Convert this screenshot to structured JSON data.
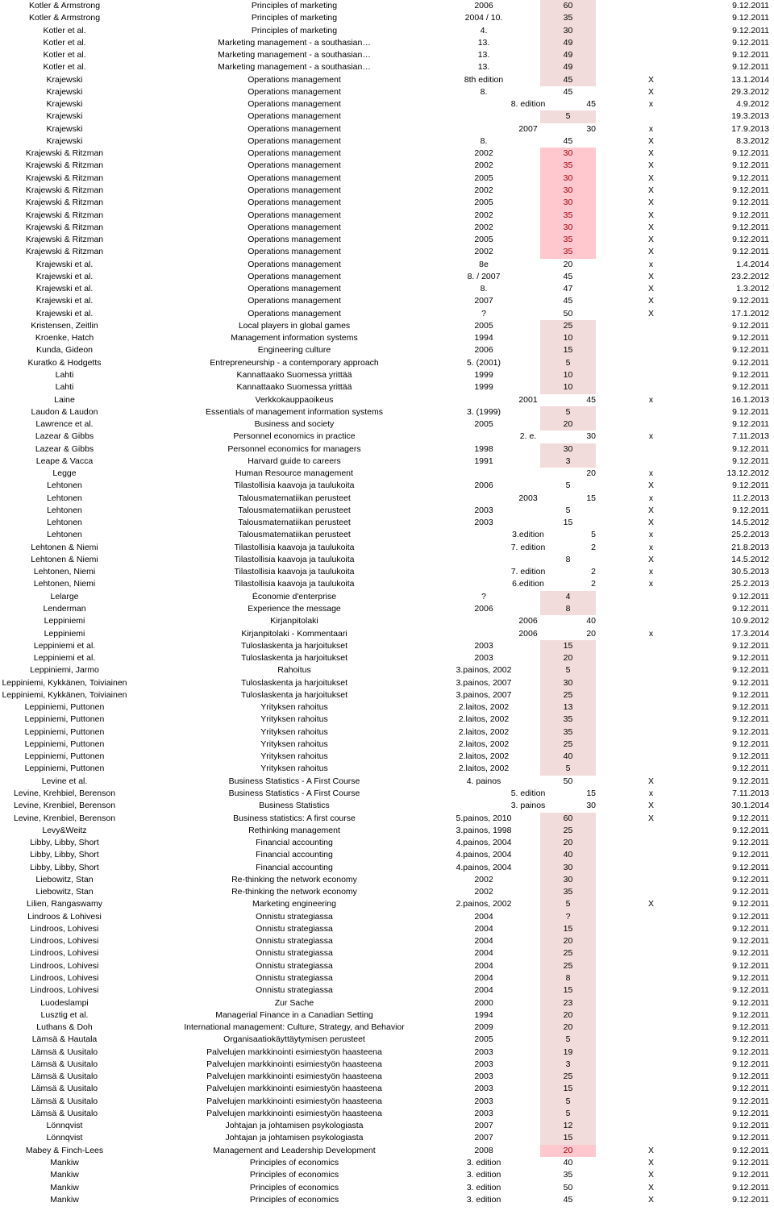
{
  "rows": [
    [
      "Kotler & Armstrong",
      "Principles of marketing",
      "2006",
      "60",
      "",
      "9.12.2011"
    ],
    [
      "Kotler & Armstrong",
      "Principles of marketing",
      "2004 / 10.",
      "35",
      "",
      "9.12.2011"
    ],
    [
      "Kotler et al.",
      "Principles of marketing",
      "4.",
      "30",
      "",
      "9.12.2011"
    ],
    [
      "Kotler et al.",
      "Marketing management - a southasian…",
      "13.",
      "49",
      "",
      "9.12.2011"
    ],
    [
      "Kotler et al.",
      "Marketing management - a southasian…",
      "13.",
      "49",
      "",
      "9.12.2011"
    ],
    [
      "Kotler et al.",
      "Marketing management - a southasian…",
      "13.",
      "49",
      "",
      "9.12.2011"
    ],
    [
      "Krajewski",
      "Operations management",
      "8th edition",
      "45",
      "X",
      "13.1.2014"
    ],
    [
      "Krajewski",
      "Operations management",
      "8.",
      "45",
      "X",
      "29.3.2012"
    ],
    [
      "Krajewski",
      "Operations management",
      "8. edition",
      "45",
      "x",
      "4.9.2012"
    ],
    [
      "Krajewski",
      "Operations management",
      "",
      "5",
      "",
      "19.3.2013"
    ],
    [
      "Krajewski",
      "Operations management",
      "2007",
      "30",
      "x",
      "17.9.2013"
    ],
    [
      "Krajewski",
      "Operations management",
      "8.",
      "45",
      "X",
      "8.3.2012"
    ],
    [
      "Krajewski & Ritzman",
      "Operations management",
      "2002",
      "30",
      "X",
      "9.12.2011"
    ],
    [
      "Krajewski & Ritzman",
      "Operations management",
      "2002",
      "35",
      "X",
      "9.12.2011"
    ],
    [
      "Krajewski & Ritzman",
      "Operations management",
      "2005",
      "30",
      "X",
      "9.12.2011"
    ],
    [
      "Krajewski & Ritzman",
      "Operations management",
      "2002",
      "30",
      "X",
      "9.12.2011"
    ],
    [
      "Krajewski & Ritzman",
      "Operations management",
      "2005",
      "30",
      "X",
      "9.12.2011"
    ],
    [
      "Krajewski & Ritzman",
      "Operations management",
      "2002",
      "35",
      "X",
      "9.12.2011"
    ],
    [
      "Krajewski & Ritzman",
      "Operations management",
      "2002",
      "30",
      "X",
      "9.12.2011"
    ],
    [
      "Krajewski & Ritzman",
      "Operations management",
      "2005",
      "35",
      "X",
      "9.12.2011"
    ],
    [
      "Krajewski & Ritzman",
      "Operations management",
      "2002",
      "35",
      "X",
      "9.12.2011"
    ],
    [
      "Krajewski et al.",
      "Operations management",
      "8e",
      "20",
      "x",
      "1.4.2014"
    ],
    [
      "Krajewski et al.",
      "Operations management",
      "8. / 2007",
      "45",
      "X",
      "23.2.2012"
    ],
    [
      "Krajewski et al.",
      "Operations management",
      "8.",
      "47",
      "X",
      "1.3.2012"
    ],
    [
      "Krajewski et al.",
      "Operations management",
      "2007",
      "45",
      "X",
      "9.12.2011"
    ],
    [
      "Krajewski et al.",
      "Operations management",
      "?",
      "50",
      "X",
      "17.1.2012"
    ],
    [
      "Kristensen, Zeitlin",
      "Local players in global games",
      "2005",
      "25",
      "",
      "9.12.2011"
    ],
    [
      "Kroenke, Hatch",
      "Management information systems",
      "1994",
      "10",
      "",
      "9.12.2011"
    ],
    [
      "Kunda, Gideon",
      "Engineering culture",
      "2006",
      "15",
      "",
      "9.12.2011"
    ],
    [
      "Kuratko & Hodgetts",
      "Entrepreneurship - a contemporary approach",
      "5. (2001)",
      "5",
      "",
      "9.12.2011"
    ],
    [
      "Lahti",
      "Kannattaako Suomessa yrittää",
      "1999",
      "10",
      "",
      "9.12.2011"
    ],
    [
      "Lahti",
      "Kannattaako Suomessa yrittää",
      "1999",
      "10",
      "",
      "9.12.2011"
    ],
    [
      "Laine",
      "Verkkokauppaoikeus",
      "2001",
      "45",
      "x",
      "16.1.2013"
    ],
    [
      "Laudon & Laudon",
      "Essentials of management information systems",
      "3. (1999)",
      "5",
      "",
      "9.12.2011"
    ],
    [
      "Lawrence et al.",
      "Business and society",
      "2005",
      "20",
      "",
      "9.12.2011"
    ],
    [
      "Lazear & Gibbs",
      "Personnel economics in practice",
      "2. e.",
      "30",
      "x",
      "7.11.2013"
    ],
    [
      "Lazear & Gibbs",
      "Personnel economics for managers",
      "1998",
      "30",
      "",
      "9.12.2011"
    ],
    [
      "Leape & Vacca",
      "Harvard guide to careers",
      "1991",
      "3",
      "",
      "9.12.2011"
    ],
    [
      "Legge",
      "Human Resource management",
      "",
      "20",
      "x",
      "13.12.2012"
    ],
    [
      "Lehtonen",
      "Tilastollisia kaavoja ja taulukoita",
      "2006",
      "5",
      "X",
      "9.12.2011"
    ],
    [
      "Lehtonen",
      "Talousmatematiikan perusteet",
      "2003",
      "15",
      "x",
      "11.2.2013"
    ],
    [
      "Lehtonen",
      "Talousmatematiikan perusteet",
      "2003",
      "5",
      "X",
      "9.12.2011"
    ],
    [
      "Lehtonen",
      "Talousmatematiikan perusteet",
      "2003",
      "15",
      "X",
      "14.5.2012"
    ],
    [
      "Lehtonen",
      "Talousmatematiikan perusteet",
      "3.edition",
      "5",
      "x",
      "25.2.2013"
    ],
    [
      "Lehtonen & Niemi",
      "Tilastollisia kaavoja ja taulukoita",
      "7. edition",
      "2",
      "x",
      "21.8.2013"
    ],
    [
      "Lehtonen & Niemi",
      "Tilastollisia kaavoja ja taulukoita",
      "",
      "8",
      "X",
      "14.5.2012"
    ],
    [
      "Lehtonen, Niemi",
      "Tilastollisia kaavoja ja taulukoita",
      "7. edition",
      "2",
      "x",
      "30.5.2013"
    ],
    [
      "Lehtonen, Niemi",
      "Tilastollisia kaavoja ja taulukoita",
      "6.edition",
      "2",
      "x",
      "25.2.2013"
    ],
    [
      "Lelarge",
      "Économie d'enterprise",
      "?",
      "4",
      "",
      "9.12.2011"
    ],
    [
      "Lenderman",
      "Experience the message",
      "2006",
      "8",
      "",
      "9.12.2011"
    ],
    [
      "Leppiniemi",
      "Kirjanpitolaki",
      "2006",
      "40",
      "",
      "10.9.2012"
    ],
    [
      "Leppiniemi",
      "Kirjanpitolaki - Kommentaari",
      "2006",
      "20",
      "x",
      "17.3.2014"
    ],
    [
      "Leppiniemi et al.",
      "Tuloslaskenta ja harjoitukset",
      "2003",
      "15",
      "",
      "9.12.2011"
    ],
    [
      "Leppiniemi et al.",
      "Tuloslaskenta ja harjoitukset",
      "2003",
      "20",
      "",
      "9.12.2011"
    ],
    [
      "Leppiniemi, Jarmo",
      "Rahoitus",
      "3.painos, 2002",
      "5",
      "",
      "9.12.2011"
    ],
    [
      "Leppiniemi, Kykkänen, Toiviainen",
      "Tuloslaskenta ja harjoitukset",
      "3.painos, 2007",
      "30",
      "",
      "9.12.2011"
    ],
    [
      "Leppiniemi, Kykkänen, Toiviainen",
      "Tuloslaskenta ja harjoitukset",
      "3.painos, 2007",
      "25",
      "",
      "9.12.2011"
    ],
    [
      "Leppiniemi, Puttonen",
      "Yrityksen rahoitus",
      "2.laitos, 2002",
      "13",
      "",
      "9.12.2011"
    ],
    [
      "Leppiniemi, Puttonen",
      "Yrityksen rahoitus",
      "2.laitos, 2002",
      "35",
      "",
      "9.12.2011"
    ],
    [
      "Leppiniemi, Puttonen",
      "Yrityksen rahoitus",
      "2.laitos, 2002",
      "35",
      "",
      "9.12.2011"
    ],
    [
      "Leppiniemi, Puttonen",
      "Yrityksen rahoitus",
      "2.laitos, 2002",
      "25",
      "",
      "9.12.2011"
    ],
    [
      "Leppiniemi, Puttonen",
      "Yrityksen rahoitus",
      "2.laitos, 2002",
      "40",
      "",
      "9.12.2011"
    ],
    [
      "Leppiniemi, Puttonen",
      "Yrityksen rahoitus",
      "2.laitos, 2002",
      "5",
      "",
      "9.12.2011"
    ],
    [
      "Levine et al.",
      "Business Statistics - A First Course",
      "4. painos",
      "50",
      "X",
      "9.12.2011"
    ],
    [
      "Levine, Krehbiel, Berenson",
      "Business Statistics - A First Course",
      "5. edition",
      "15",
      "x",
      "7.11.2013"
    ],
    [
      "Levine, Krenbiel, Berenson",
      "Business Statistics",
      "3. painos",
      "30",
      "X",
      "30.1.2014"
    ],
    [
      "Levine, Krenbiel, Berenson",
      "Business statistics: A first course",
      "5.painos, 2010",
      "60",
      "X",
      "9.12.2011"
    ],
    [
      "Levy&Weitz",
      "Rethinking management",
      "3.painos, 1998",
      "25",
      "",
      "9.12.2011"
    ],
    [
      "Libby, Libby, Short",
      "Financial accounting",
      "4.painos, 2004",
      "20",
      "",
      "9.12.2011"
    ],
    [
      "Libby, Libby, Short",
      "Financial accounting",
      "4.painos, 2004",
      "40",
      "",
      "9.12.2011"
    ],
    [
      "Libby, Libby, Short",
      "Financial accounting",
      "4.painos, 2004",
      "30",
      "",
      "9.12.2011"
    ],
    [
      "Liebowitz, Stan",
      "Re-thinking the network economy",
      "2002",
      "30",
      "",
      "9.12.2011"
    ],
    [
      "Liebowitz, Stan",
      "Re-thinking the network economy",
      "2002",
      "35",
      "",
      "9.12.2011"
    ],
    [
      "Lilien, Rangaswamy",
      "Marketing engineering",
      "2.painos, 2002",
      "5",
      "X",
      "9.12.2011"
    ],
    [
      "Lindroos & Lohivesi",
      "Onnistu strategiassa",
      "2004",
      "?",
      "",
      "9.12.2011"
    ],
    [
      "Lindroos, Lohivesi",
      "Onnistu strategiassa",
      "2004",
      "15",
      "",
      "9.12.2011"
    ],
    [
      "Lindroos, Lohivesi",
      "Onnistu strategiassa",
      "2004",
      "20",
      "",
      "9.12.2011"
    ],
    [
      "Lindroos, Lohivesi",
      "Onnistu strategiassa",
      "2004",
      "25",
      "",
      "9.12.2011"
    ],
    [
      "Lindroos, Lohivesi",
      "Onnistu strategiassa",
      "2004",
      "25",
      "",
      "9.12.2011"
    ],
    [
      "Lindroos, Lohivesi",
      "Onnistu strategiassa",
      "2004",
      "8",
      "",
      "9.12.2011"
    ],
    [
      "Lindroos, Lohivesi",
      "Onnistu strategiassa",
      "2004",
      "15",
      "",
      "9.12.2011"
    ],
    [
      "Luodeslampi",
      "Zur Sache",
      "2000",
      "23",
      "",
      "9.12.2011"
    ],
    [
      "Lusztig et al.",
      "Managerial Finance in a Canadian Setting",
      "1994",
      "20",
      "",
      "9.12.2011"
    ],
    [
      "Luthans & Doh",
      "International management: Culture, Strategy, and Behavior",
      "2009",
      "20",
      "",
      "9.12.2011"
    ],
    [
      "Lämsä & Hautala",
      "Organisaatiokäyttäytymisen perusteet",
      "2005",
      "5",
      "",
      "9.12.2011"
    ],
    [
      "Lämsä & Uusitalo",
      "Palvelujen markkinointi esimiestyön haasteena",
      "2003",
      "19",
      "",
      "9.12.2011"
    ],
    [
      "Lämsä & Uusitalo",
      "Palvelujen markkinointi esimiestyön haasteena",
      "2003",
      "3",
      "",
      "9.12.2011"
    ],
    [
      "Lämsä & Uusitalo",
      "Palvelujen markkinointi esimiestyön haasteena",
      "2003",
      "25",
      "",
      "9.12.2011"
    ],
    [
      "Lämsä & Uusitalo",
      "Palvelujen markkinointi esimiestyön haasteena",
      "2003",
      "15",
      "",
      "9.12.2011"
    ],
    [
      "Lämsä & Uusitalo",
      "Palvelujen markkinointi esimiestyön haasteena",
      "2003",
      "5",
      "",
      "9.12.2011"
    ],
    [
      "Lämsä & Uusitalo",
      "Palvelujen markkinointi esimiestyön haasteena",
      "2003",
      "5",
      "",
      "9.12.2011"
    ],
    [
      "Lönnqvist",
      "Johtajan ja johtamisen psykologiasta",
      "2007",
      "12",
      "",
      "9.12.2011"
    ],
    [
      "Lönnqvist",
      "Johtajan ja johtamisen psykologiasta",
      "2007",
      "15",
      "",
      "9.12.2011"
    ],
    [
      "Mabey & Finch-Lees",
      "Management and Leadership Development",
      "2008",
      "20",
      "X",
      "9.12.2011"
    ],
    [
      "Mankiw",
      "Principles of economics",
      "3. edition",
      "40",
      "X",
      "9.12.2011"
    ],
    [
      "Mankiw",
      "Principles of economics",
      "3. edition",
      "35",
      "X",
      "9.12.2011"
    ],
    [
      "Mankiw",
      "Principles of economics",
      "3. edition",
      "50",
      "X",
      "9.12.2011"
    ],
    [
      "Mankiw",
      "Principles of economics",
      "3. edition",
      "45",
      "X",
      "9.12.2011"
    ]
  ],
  "styles": {
    "hl1": [
      0,
      1,
      2,
      3,
      4,
      5,
      6,
      9,
      26,
      27,
      28,
      29,
      30,
      31,
      33,
      34,
      36,
      37,
      48,
      49,
      52,
      53,
      54,
      55,
      56,
      57,
      58,
      59,
      60,
      61,
      62,
      66,
      67,
      68,
      69,
      70,
      71,
      72,
      73,
      74,
      75,
      76,
      77,
      78,
      79,
      80,
      81,
      82,
      83,
      84,
      85,
      86,
      87,
      88,
      89,
      90,
      91,
      92
    ],
    "hl2": [
      12,
      13,
      14,
      15,
      16,
      17,
      18,
      19,
      20,
      93
    ],
    "offset": [
      8,
      10,
      32,
      35,
      38,
      40,
      43,
      44,
      46,
      47,
      50,
      51,
      64,
      65
    ]
  },
  "colors": {
    "highlight_light": "#f2dcdb",
    "highlight_red": "#ffc7ce",
    "highlight_red_text": "#9c0006"
  }
}
